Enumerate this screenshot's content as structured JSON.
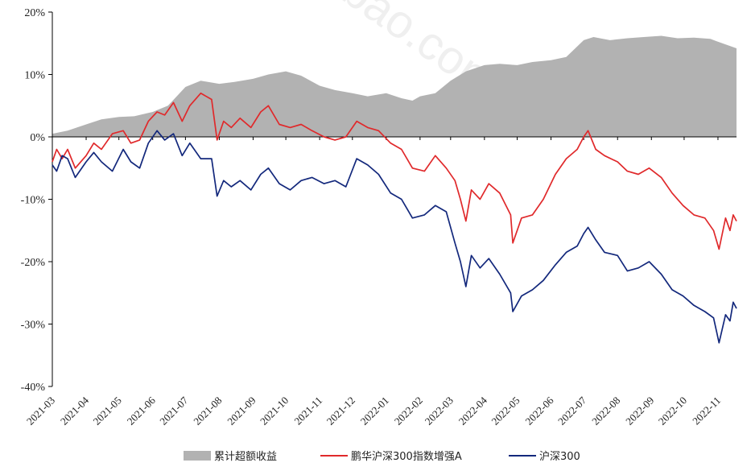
{
  "chart_data": {
    "type": "line",
    "y_unit": "%",
    "ylim": [
      -40,
      20
    ],
    "yticks": [
      20,
      10,
      0,
      -10,
      -20,
      -30,
      -40
    ],
    "ytick_labels": [
      "20%",
      "10%",
      "0%",
      "-10%",
      "-20%",
      "-30%",
      "-40%"
    ],
    "xlim": [
      "2021-03-01",
      "2022-11-18"
    ],
    "xtick_labels": [
      "2021-03",
      "2021-04",
      "2021-05",
      "2021-06",
      "2021-07",
      "2021-08",
      "2021-09",
      "2021-10",
      "2021-11",
      "2021-12",
      "2022-01",
      "2022-02",
      "2022-03",
      "2022-04",
      "2022-05",
      "2022-06",
      "2022-07",
      "2022-08",
      "2022-09",
      "2022-10",
      "2022-11"
    ],
    "legend_position": "bottom",
    "colors": {
      "excess": "#b2b2b2",
      "fund": "#e0292b",
      "index": "#13287c"
    },
    "series": [
      {
        "name": "累计超额收益",
        "kind": "area",
        "points": [
          [
            "2021-03-01",
            0.5
          ],
          [
            "2021-03-15",
            1.0
          ],
          [
            "2021-04-01",
            2.0
          ],
          [
            "2021-04-15",
            2.8
          ],
          [
            "2021-05-01",
            3.2
          ],
          [
            "2021-05-15",
            3.3
          ],
          [
            "2021-06-01",
            4.0
          ],
          [
            "2021-06-15",
            5.0
          ],
          [
            "2021-07-01",
            8.0
          ],
          [
            "2021-07-15",
            9.0
          ],
          [
            "2021-08-01",
            8.5
          ],
          [
            "2021-08-15",
            8.8
          ],
          [
            "2021-09-01",
            9.3
          ],
          [
            "2021-09-15",
            10.0
          ],
          [
            "2021-10-01",
            10.5
          ],
          [
            "2021-10-15",
            9.8
          ],
          [
            "2021-11-01",
            8.2
          ],
          [
            "2021-11-15",
            7.5
          ],
          [
            "2021-12-01",
            7.0
          ],
          [
            "2021-12-15",
            6.5
          ],
          [
            "2022-01-01",
            7.0
          ],
          [
            "2022-01-15",
            6.2
          ],
          [
            "2022-01-25",
            5.8
          ],
          [
            "2022-02-01",
            6.5
          ],
          [
            "2022-02-15",
            7.0
          ],
          [
            "2022-03-01",
            9.0
          ],
          [
            "2022-03-15",
            10.5
          ],
          [
            "2022-04-01",
            11.5
          ],
          [
            "2022-04-15",
            11.7
          ],
          [
            "2022-05-01",
            11.5
          ],
          [
            "2022-05-15",
            12.0
          ],
          [
            "2022-06-01",
            12.3
          ],
          [
            "2022-06-15",
            12.8
          ],
          [
            "2022-07-01",
            15.5
          ],
          [
            "2022-07-10",
            16.0
          ],
          [
            "2022-07-25",
            15.5
          ],
          [
            "2022-08-10",
            15.8
          ],
          [
            "2022-08-25",
            16.0
          ],
          [
            "2022-09-10",
            16.2
          ],
          [
            "2022-09-25",
            15.8
          ],
          [
            "2022-10-10",
            15.9
          ],
          [
            "2022-10-25",
            15.7
          ],
          [
            "2022-11-05",
            15.0
          ],
          [
            "2022-11-18",
            14.2
          ]
        ]
      },
      {
        "name": "鹏华沪深300指数增强A",
        "kind": "line",
        "points": [
          [
            "2021-03-01",
            -4.0
          ],
          [
            "2021-03-05",
            -2.0
          ],
          [
            "2021-03-10",
            -3.5
          ],
          [
            "2021-03-15",
            -2.0
          ],
          [
            "2021-03-22",
            -5.0
          ],
          [
            "2021-04-01",
            -3.0
          ],
          [
            "2021-04-08",
            -1.0
          ],
          [
            "2021-04-15",
            -2.0
          ],
          [
            "2021-04-25",
            0.5
          ],
          [
            "2021-05-05",
            1.0
          ],
          [
            "2021-05-12",
            -1.0
          ],
          [
            "2021-05-20",
            -0.5
          ],
          [
            "2021-05-28",
            2.5
          ],
          [
            "2021-06-05",
            4.0
          ],
          [
            "2021-06-12",
            3.5
          ],
          [
            "2021-06-20",
            5.5
          ],
          [
            "2021-06-28",
            2.5
          ],
          [
            "2021-07-05",
            5.0
          ],
          [
            "2021-07-15",
            7.0
          ],
          [
            "2021-07-25",
            6.0
          ],
          [
            "2021-07-30",
            -0.5
          ],
          [
            "2021-08-05",
            2.5
          ],
          [
            "2021-08-12",
            1.5
          ],
          [
            "2021-08-20",
            3.0
          ],
          [
            "2021-08-30",
            1.5
          ],
          [
            "2021-09-08",
            4.0
          ],
          [
            "2021-09-15",
            5.0
          ],
          [
            "2021-09-25",
            2.0
          ],
          [
            "2021-10-05",
            1.5
          ],
          [
            "2021-10-15",
            2.0
          ],
          [
            "2021-10-25",
            1.0
          ],
          [
            "2021-11-05",
            0.0
          ],
          [
            "2021-11-15",
            -0.5
          ],
          [
            "2021-11-25",
            0.0
          ],
          [
            "2021-12-05",
            2.5
          ],
          [
            "2021-12-15",
            1.5
          ],
          [
            "2021-12-25",
            1.0
          ],
          [
            "2022-01-05",
            -1.0
          ],
          [
            "2022-01-15",
            -2.0
          ],
          [
            "2022-01-25",
            -5.0
          ],
          [
            "2022-02-05",
            -5.5
          ],
          [
            "2022-02-15",
            -3.0
          ],
          [
            "2022-02-25",
            -5.0
          ],
          [
            "2022-03-05",
            -7.0
          ],
          [
            "2022-03-10",
            -10.0
          ],
          [
            "2022-03-15",
            -13.5
          ],
          [
            "2022-03-20",
            -8.5
          ],
          [
            "2022-03-28",
            -10.0
          ],
          [
            "2022-04-05",
            -7.5
          ],
          [
            "2022-04-15",
            -9.0
          ],
          [
            "2022-04-25",
            -12.5
          ],
          [
            "2022-04-27",
            -17.0
          ],
          [
            "2022-05-05",
            -13.0
          ],
          [
            "2022-05-15",
            -12.5
          ],
          [
            "2022-05-25",
            -10.0
          ],
          [
            "2022-06-05",
            -6.0
          ],
          [
            "2022-06-15",
            -3.5
          ],
          [
            "2022-06-25",
            -2.0
          ],
          [
            "2022-07-01",
            0.0
          ],
          [
            "2022-07-05",
            1.0
          ],
          [
            "2022-07-12",
            -2.0
          ],
          [
            "2022-07-20",
            -3.0
          ],
          [
            "2022-08-01",
            -4.0
          ],
          [
            "2022-08-10",
            -5.5
          ],
          [
            "2022-08-20",
            -6.0
          ],
          [
            "2022-08-30",
            -5.0
          ],
          [
            "2022-09-10",
            -6.5
          ],
          [
            "2022-09-20",
            -9.0
          ],
          [
            "2022-09-30",
            -11.0
          ],
          [
            "2022-10-10",
            -12.5
          ],
          [
            "2022-10-20",
            -13.0
          ],
          [
            "2022-10-28",
            -15.0
          ],
          [
            "2022-11-02",
            -18.0
          ],
          [
            "2022-11-08",
            -13.0
          ],
          [
            "2022-11-12",
            -15.0
          ],
          [
            "2022-11-15",
            -12.5
          ],
          [
            "2022-11-18",
            -13.5
          ]
        ]
      },
      {
        "name": "沪深300",
        "kind": "line",
        "points": [
          [
            "2021-03-01",
            -4.5
          ],
          [
            "2021-03-05",
            -5.5
          ],
          [
            "2021-03-10",
            -3.0
          ],
          [
            "2021-03-15",
            -3.5
          ],
          [
            "2021-03-22",
            -6.5
          ],
          [
            "2021-04-01",
            -4.0
          ],
          [
            "2021-04-08",
            -2.5
          ],
          [
            "2021-04-15",
            -4.0
          ],
          [
            "2021-04-25",
            -5.5
          ],
          [
            "2021-05-05",
            -2.0
          ],
          [
            "2021-05-12",
            -4.0
          ],
          [
            "2021-05-20",
            -5.0
          ],
          [
            "2021-05-28",
            -1.0
          ],
          [
            "2021-06-05",
            1.0
          ],
          [
            "2021-06-12",
            -0.5
          ],
          [
            "2021-06-20",
            0.5
          ],
          [
            "2021-06-28",
            -3.0
          ],
          [
            "2021-07-05",
            -1.0
          ],
          [
            "2021-07-15",
            -3.5
          ],
          [
            "2021-07-25",
            -3.5
          ],
          [
            "2021-07-30",
            -9.5
          ],
          [
            "2021-08-05",
            -7.0
          ],
          [
            "2021-08-12",
            -8.0
          ],
          [
            "2021-08-20",
            -7.0
          ],
          [
            "2021-08-30",
            -8.5
          ],
          [
            "2021-09-08",
            -6.0
          ],
          [
            "2021-09-15",
            -5.0
          ],
          [
            "2021-09-25",
            -7.5
          ],
          [
            "2021-10-05",
            -8.5
          ],
          [
            "2021-10-15",
            -7.0
          ],
          [
            "2021-10-25",
            -6.5
          ],
          [
            "2021-11-05",
            -7.5
          ],
          [
            "2021-11-15",
            -7.0
          ],
          [
            "2021-11-25",
            -8.0
          ],
          [
            "2021-12-05",
            -3.5
          ],
          [
            "2021-12-15",
            -4.5
          ],
          [
            "2021-12-25",
            -6.0
          ],
          [
            "2022-01-05",
            -9.0
          ],
          [
            "2022-01-15",
            -10.0
          ],
          [
            "2022-01-25",
            -13.0
          ],
          [
            "2022-02-05",
            -12.5
          ],
          [
            "2022-02-15",
            -11.0
          ],
          [
            "2022-02-25",
            -12.0
          ],
          [
            "2022-03-05",
            -17.0
          ],
          [
            "2022-03-10",
            -20.0
          ],
          [
            "2022-03-15",
            -24.0
          ],
          [
            "2022-03-20",
            -19.0
          ],
          [
            "2022-03-28",
            -21.0
          ],
          [
            "2022-04-05",
            -19.5
          ],
          [
            "2022-04-15",
            -22.0
          ],
          [
            "2022-04-25",
            -25.0
          ],
          [
            "2022-04-27",
            -28.0
          ],
          [
            "2022-05-05",
            -25.5
          ],
          [
            "2022-05-15",
            -24.5
          ],
          [
            "2022-05-25",
            -23.0
          ],
          [
            "2022-06-05",
            -20.5
          ],
          [
            "2022-06-15",
            -18.5
          ],
          [
            "2022-06-25",
            -17.5
          ],
          [
            "2022-07-01",
            -15.5
          ],
          [
            "2022-07-05",
            -14.5
          ],
          [
            "2022-07-12",
            -16.5
          ],
          [
            "2022-07-20",
            -18.5
          ],
          [
            "2022-08-01",
            -19.0
          ],
          [
            "2022-08-10",
            -21.5
          ],
          [
            "2022-08-20",
            -21.0
          ],
          [
            "2022-08-30",
            -20.0
          ],
          [
            "2022-09-10",
            -22.0
          ],
          [
            "2022-09-20",
            -24.5
          ],
          [
            "2022-09-30",
            -25.5
          ],
          [
            "2022-10-10",
            -27.0
          ],
          [
            "2022-10-20",
            -28.0
          ],
          [
            "2022-10-28",
            -29.0
          ],
          [
            "2022-11-02",
            -33.0
          ],
          [
            "2022-11-08",
            -28.5
          ],
          [
            "2022-11-12",
            -29.5
          ],
          [
            "2022-11-15",
            -26.5
          ],
          [
            "2022-11-18",
            -27.5
          ]
        ]
      }
    ]
  }
}
